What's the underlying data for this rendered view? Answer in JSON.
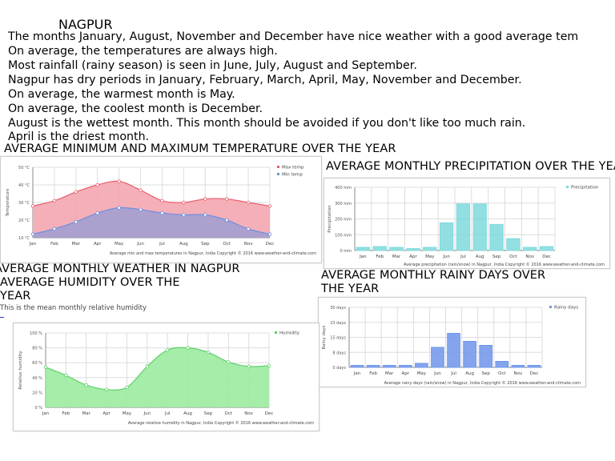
{
  "title": "NAGPUR",
  "facts": [
    "The months January, August, November and December have nice weather with a good average tem",
    "On average, the temperatures are always high.",
    "Most rainfall (rainy season) is seen in June, July, August and September.",
    "Nagpur has dry periods in January, February, March, April, May, November and December.",
    "On average, the warmest month is May.",
    "On average, the coolest month is December.",
    "August is the wettest month. This month should be avoided if you don't like too much rain.",
    "April is the driest month."
  ],
  "headings": {
    "temperature": "AVERAGE MINIMUM AND MAXIMUM TEMPERATURE OVER THE YEAR",
    "precipitation": "AVERAGE MONTHLY PRECIPITATION OVER THE YEAR",
    "weather": "AVERAGE MONTHLY WEATHER IN NAGPUR",
    "humidity_1": "AVERAGE HUMIDITY OVER THE",
    "humidity_2": "YEAR",
    "humidity_sub": "This is the mean monthly relative humidity",
    "rainy_1": "AVERAGE MONTHLY RAINY DAYS OVER",
    "rainy_2": "THE YEAR"
  },
  "chart_data": [
    {
      "type": "area",
      "categories": [
        "Jan",
        "Feb",
        "Mar",
        "Apr",
        "May",
        "Jun",
        "Jul",
        "Aug",
        "Sep",
        "Oct",
        "Nov",
        "Dec"
      ],
      "series": [
        {
          "name": "Max temp",
          "color": "#e8606f",
          "fill": "#f4a6b0",
          "values": [
            28,
            31,
            36,
            40,
            42,
            37,
            31,
            30,
            32,
            32,
            30,
            28
          ]
        },
        {
          "name": "Min temp",
          "color": "#6f8fe0",
          "fill": "#a49fd0",
          "values": [
            12,
            15,
            19,
            24,
            27,
            26,
            24,
            23,
            23,
            20,
            15,
            12
          ]
        }
      ],
      "ylabel": "Temperature",
      "yticks": [
        "10 °C",
        "20 °C",
        "30 °C",
        "40 °C",
        "50 °C"
      ],
      "ylim": [
        10,
        50
      ],
      "grid": true,
      "legend": "top-right",
      "caption": "Average min and max temperatures in Nagpur, India   Copyright © 2016 www.weather-and-climate.com"
    },
    {
      "type": "bar",
      "categories": [
        "Jan",
        "Feb",
        "Mar",
        "Apr",
        "May",
        "Jun",
        "Jul",
        "Aug",
        "Sep",
        "Oct",
        "Nov",
        "Dec"
      ],
      "series": [
        {
          "name": "Precipitation",
          "color": "#7fd9dc",
          "values": [
            20,
            25,
            20,
            12,
            20,
            175,
            295,
            295,
            165,
            75,
            20,
            25
          ]
        }
      ],
      "ylabel": "Precipitation",
      "yticks": [
        "0 mm",
        "100 mm",
        "200 mm",
        "300 mm",
        "400 mm"
      ],
      "ylim": [
        0,
        400
      ],
      "grid": true,
      "legend": "top-right",
      "caption": "Average precipitation (rain/snow) in Nagpur, India   Copyright © 2016 www.weather-and-climate.com"
    },
    {
      "type": "area",
      "categories": [
        "Jan",
        "Feb",
        "Mar",
        "Apr",
        "May",
        "Jun",
        "Jul",
        "Aug",
        "Sep",
        "Oct",
        "Nov",
        "Dec"
      ],
      "series": [
        {
          "name": "Humidity",
          "color": "#5fcf6a",
          "fill": "#9beb9e",
          "values": [
            54,
            43,
            30,
            24,
            27,
            55,
            77,
            80,
            74,
            61,
            55,
            56
          ]
        }
      ],
      "ylabel": "Relative humidity",
      "yticks": [
        "0 %",
        "20 %",
        "40 %",
        "60 %",
        "80 %",
        "100 %"
      ],
      "ylim": [
        0,
        100
      ],
      "grid": true,
      "legend": "top-right",
      "caption": "Average relative humidity in Nagpur, India   Copyright © 2016 www.weather-and-climate.com"
    },
    {
      "type": "bar",
      "categories": [
        "Jan",
        "Feb",
        "Mar",
        "Apr",
        "May",
        "Jun",
        "Jul",
        "Aug",
        "Sep",
        "Oct",
        "Nov",
        "Dec"
      ],
      "series": [
        {
          "name": "Rainy days",
          "color": "#6f95ea",
          "values": [
            1,
            1,
            1,
            1,
            2,
            10,
            17,
            13,
            11,
            3,
            1,
            1
          ]
        }
      ],
      "ylabel": "Rainy days",
      "yticks": [
        "0 days",
        "8 days",
        "15 days",
        "23 days",
        "30 days"
      ],
      "ylim": [
        0,
        30
      ],
      "grid": true,
      "legend": "top-right",
      "caption": "Average rainy days (rain/snow) in Nagpur, India   Copyright © 2016 www.weather-and-climate.com"
    }
  ]
}
